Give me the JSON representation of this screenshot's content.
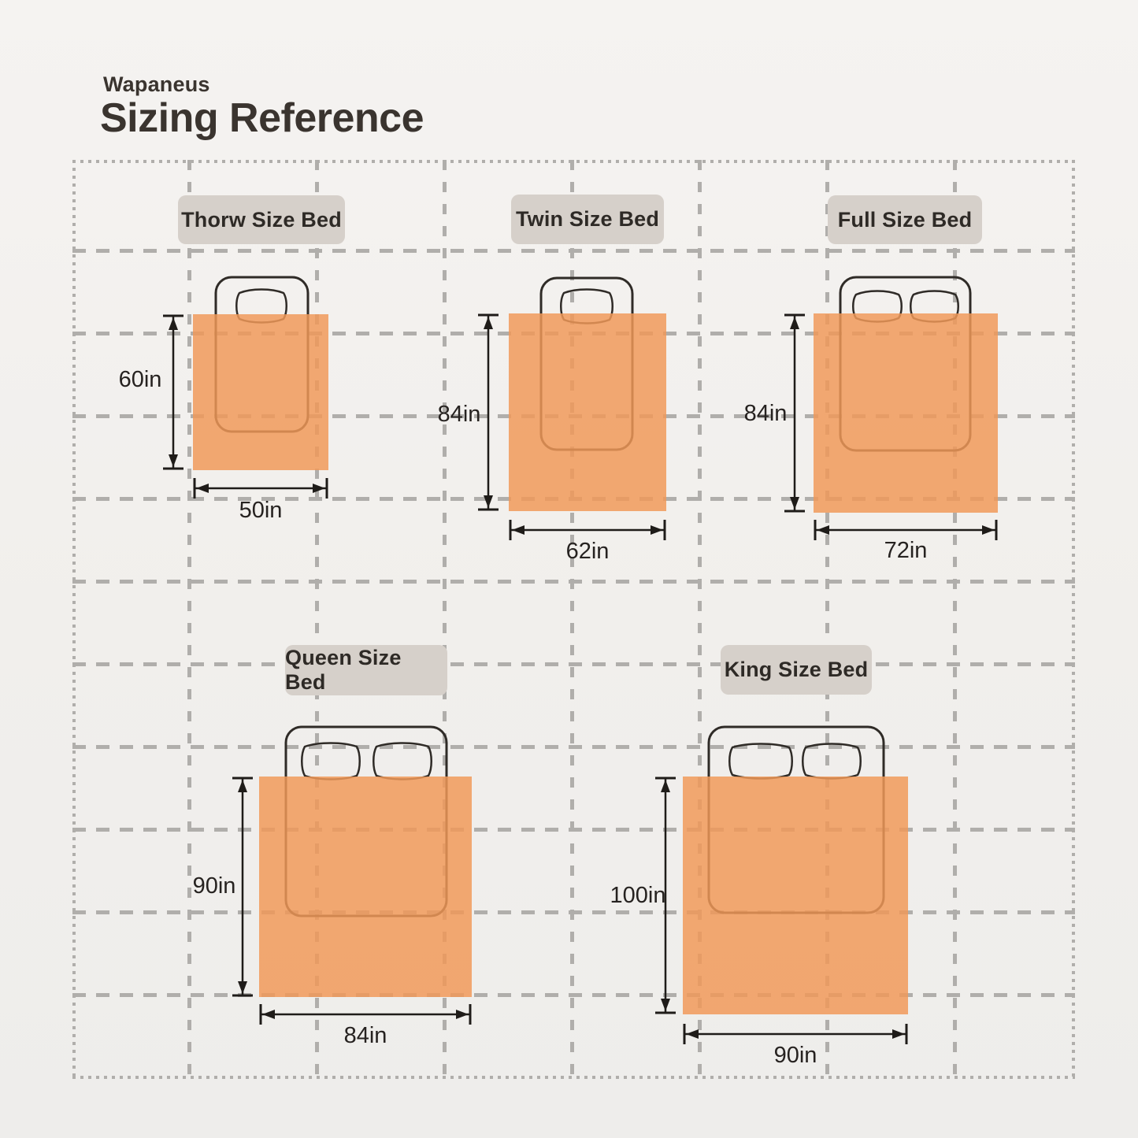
{
  "header": {
    "brand": "Wapaneus",
    "title": "Sizing Reference"
  },
  "diagram": {
    "beds": [
      {
        "label": "Thorw Size Bed",
        "blanket_height": "60in",
        "blanket_width": "50in",
        "pillow_count": 1
      },
      {
        "label": "Twin Size Bed",
        "blanket_height": "84in",
        "blanket_width": "62in",
        "pillow_count": 1
      },
      {
        "label": "Full Size Bed",
        "blanket_height": "84in",
        "blanket_width": "72in",
        "pillow_count": 2
      },
      {
        "label": "Queen Size Bed",
        "blanket_height": "90in",
        "blanket_width": "84in",
        "pillow_count": 2
      },
      {
        "label": "King Size Bed",
        "blanket_height": "100in",
        "blanket_width": "90in",
        "pillow_count": 2
      }
    ]
  },
  "colors": {
    "background": "#F1EFED",
    "blanket": "#F19858",
    "blanket_opacity": "0.84",
    "grid_line": "#B0AEAB",
    "label_background": "#D6D0CA",
    "outline": "#2F2B27",
    "dimension": "#1F1C19",
    "text": "#332E29"
  }
}
